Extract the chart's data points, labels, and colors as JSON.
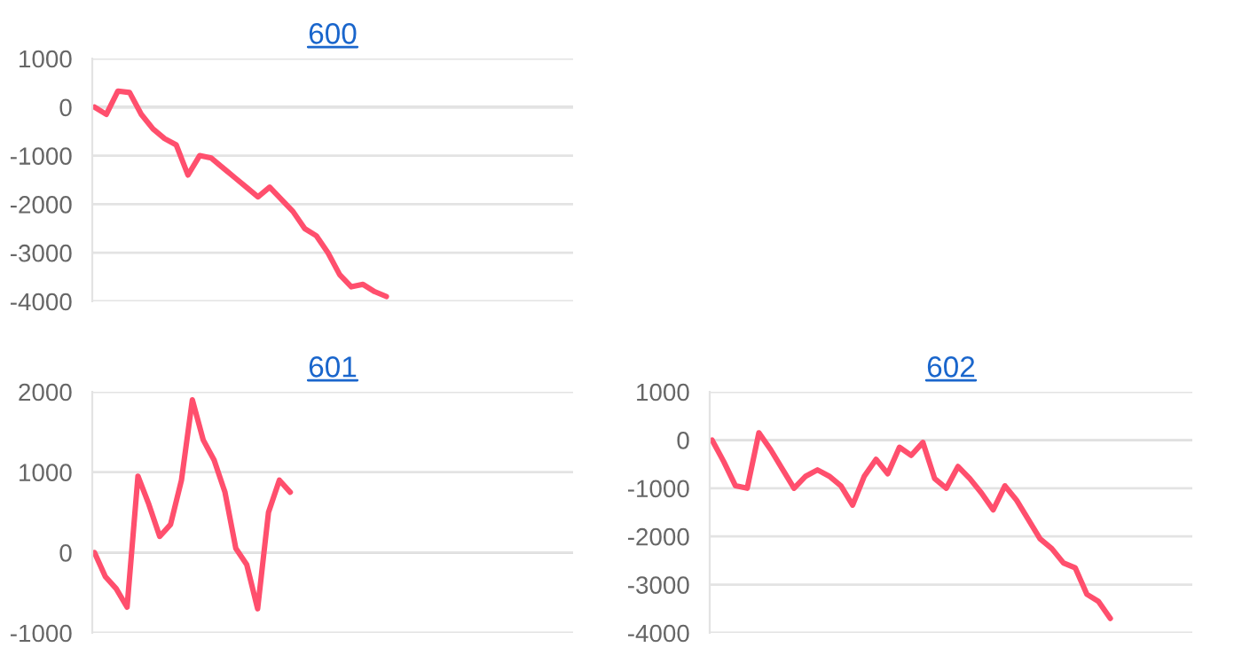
{
  "chart_data": [
    {
      "type": "line",
      "title": "600",
      "categories": [
        null,
        null,
        null,
        null,
        null,
        null,
        null,
        null,
        null,
        null,
        null,
        null,
        null,
        null,
        null,
        null,
        null,
        null,
        null,
        null,
        null,
        null,
        null,
        null,
        null,
        null,
        null,
        null,
        null,
        null,
        null,
        null,
        null,
        null,
        null,
        null,
        null,
        null,
        null,
        null,
        null,
        null
      ],
      "series": [
        {
          "color": "#ff4f6d",
          "values": [
            0,
            -150,
            330,
            300,
            -150,
            -450,
            -650,
            -780,
            -1400,
            -1000,
            -1050,
            -1250,
            -1450,
            -1650,
            -1850,
            -1650,
            -1900,
            -2150,
            -2500,
            -2650,
            -3000,
            -3450,
            -3700,
            -3650,
            -3800,
            -3900,
            null,
            null,
            null,
            null,
            null,
            null,
            null,
            null,
            null,
            null,
            null,
            null,
            null,
            null,
            null,
            null
          ]
        }
      ],
      "ylim": [
        -4000,
        1000
      ],
      "yticks": [
        -4000,
        -3000,
        -2000,
        -1000,
        0,
        1000
      ],
      "grid": "y",
      "tick_labels": "y",
      "marker": "none"
    },
    {
      "type": "line",
      "title": "601",
      "categories": [
        null,
        null,
        null,
        null,
        null,
        null,
        null,
        null,
        null,
        null,
        null,
        null,
        null,
        null,
        null,
        null,
        null,
        null,
        null,
        null,
        null,
        null,
        null,
        null,
        null,
        null,
        null,
        null,
        null,
        null,
        null,
        null,
        null,
        null,
        null,
        null,
        null,
        null,
        null,
        null,
        null,
        null,
        null,
        null,
        null
      ],
      "series": [
        {
          "color": "#ff4f6d",
          "values": [
            0,
            -300,
            -450,
            -680,
            950,
            600,
            200,
            350,
            900,
            1900,
            1400,
            1150,
            750,
            50,
            -150,
            -700,
            500,
            900,
            750,
            null,
            null,
            null,
            null,
            null,
            null,
            null,
            null,
            null,
            null,
            null,
            null,
            null,
            null,
            null,
            null,
            null,
            null,
            null,
            null,
            null,
            null,
            null,
            null,
            null,
            null
          ]
        }
      ],
      "ylim": [
        -1000,
        2000
      ],
      "yticks": [
        -1000,
        0,
        1000,
        2000
      ],
      "grid": "y",
      "tick_labels": "y",
      "marker": "none"
    },
    {
      "type": "line",
      "title": "602",
      "categories": [
        null,
        null,
        null,
        null,
        null,
        null,
        null,
        null,
        null,
        null,
        null,
        null,
        null,
        null,
        null,
        null,
        null,
        null,
        null,
        null,
        null,
        null,
        null,
        null,
        null,
        null,
        null,
        null,
        null,
        null,
        null,
        null,
        null,
        null,
        null,
        null,
        null,
        null,
        null,
        null,
        null,
        null
      ],
      "series": [
        {
          "color": "#ff4f6d",
          "values": [
            0,
            -450,
            -950,
            -1000,
            150,
            -200,
            -600,
            -1000,
            -750,
            -620,
            -750,
            -950,
            -1350,
            -750,
            -400,
            -700,
            -150,
            -320,
            -50,
            -800,
            -1000,
            -550,
            -800,
            -1100,
            -1450,
            -950,
            -1250,
            -1650,
            -2050,
            -2250,
            -2550,
            -2650,
            -3200,
            -3350,
            -3700,
            null,
            null,
            null,
            null,
            null,
            null,
            null
          ]
        }
      ],
      "ylim": [
        -4000,
        1000
      ],
      "yticks": [
        -4000,
        -3000,
        -2000,
        -1000,
        0,
        1000
      ],
      "grid": "y",
      "tick_labels": "y",
      "marker": "none"
    }
  ]
}
